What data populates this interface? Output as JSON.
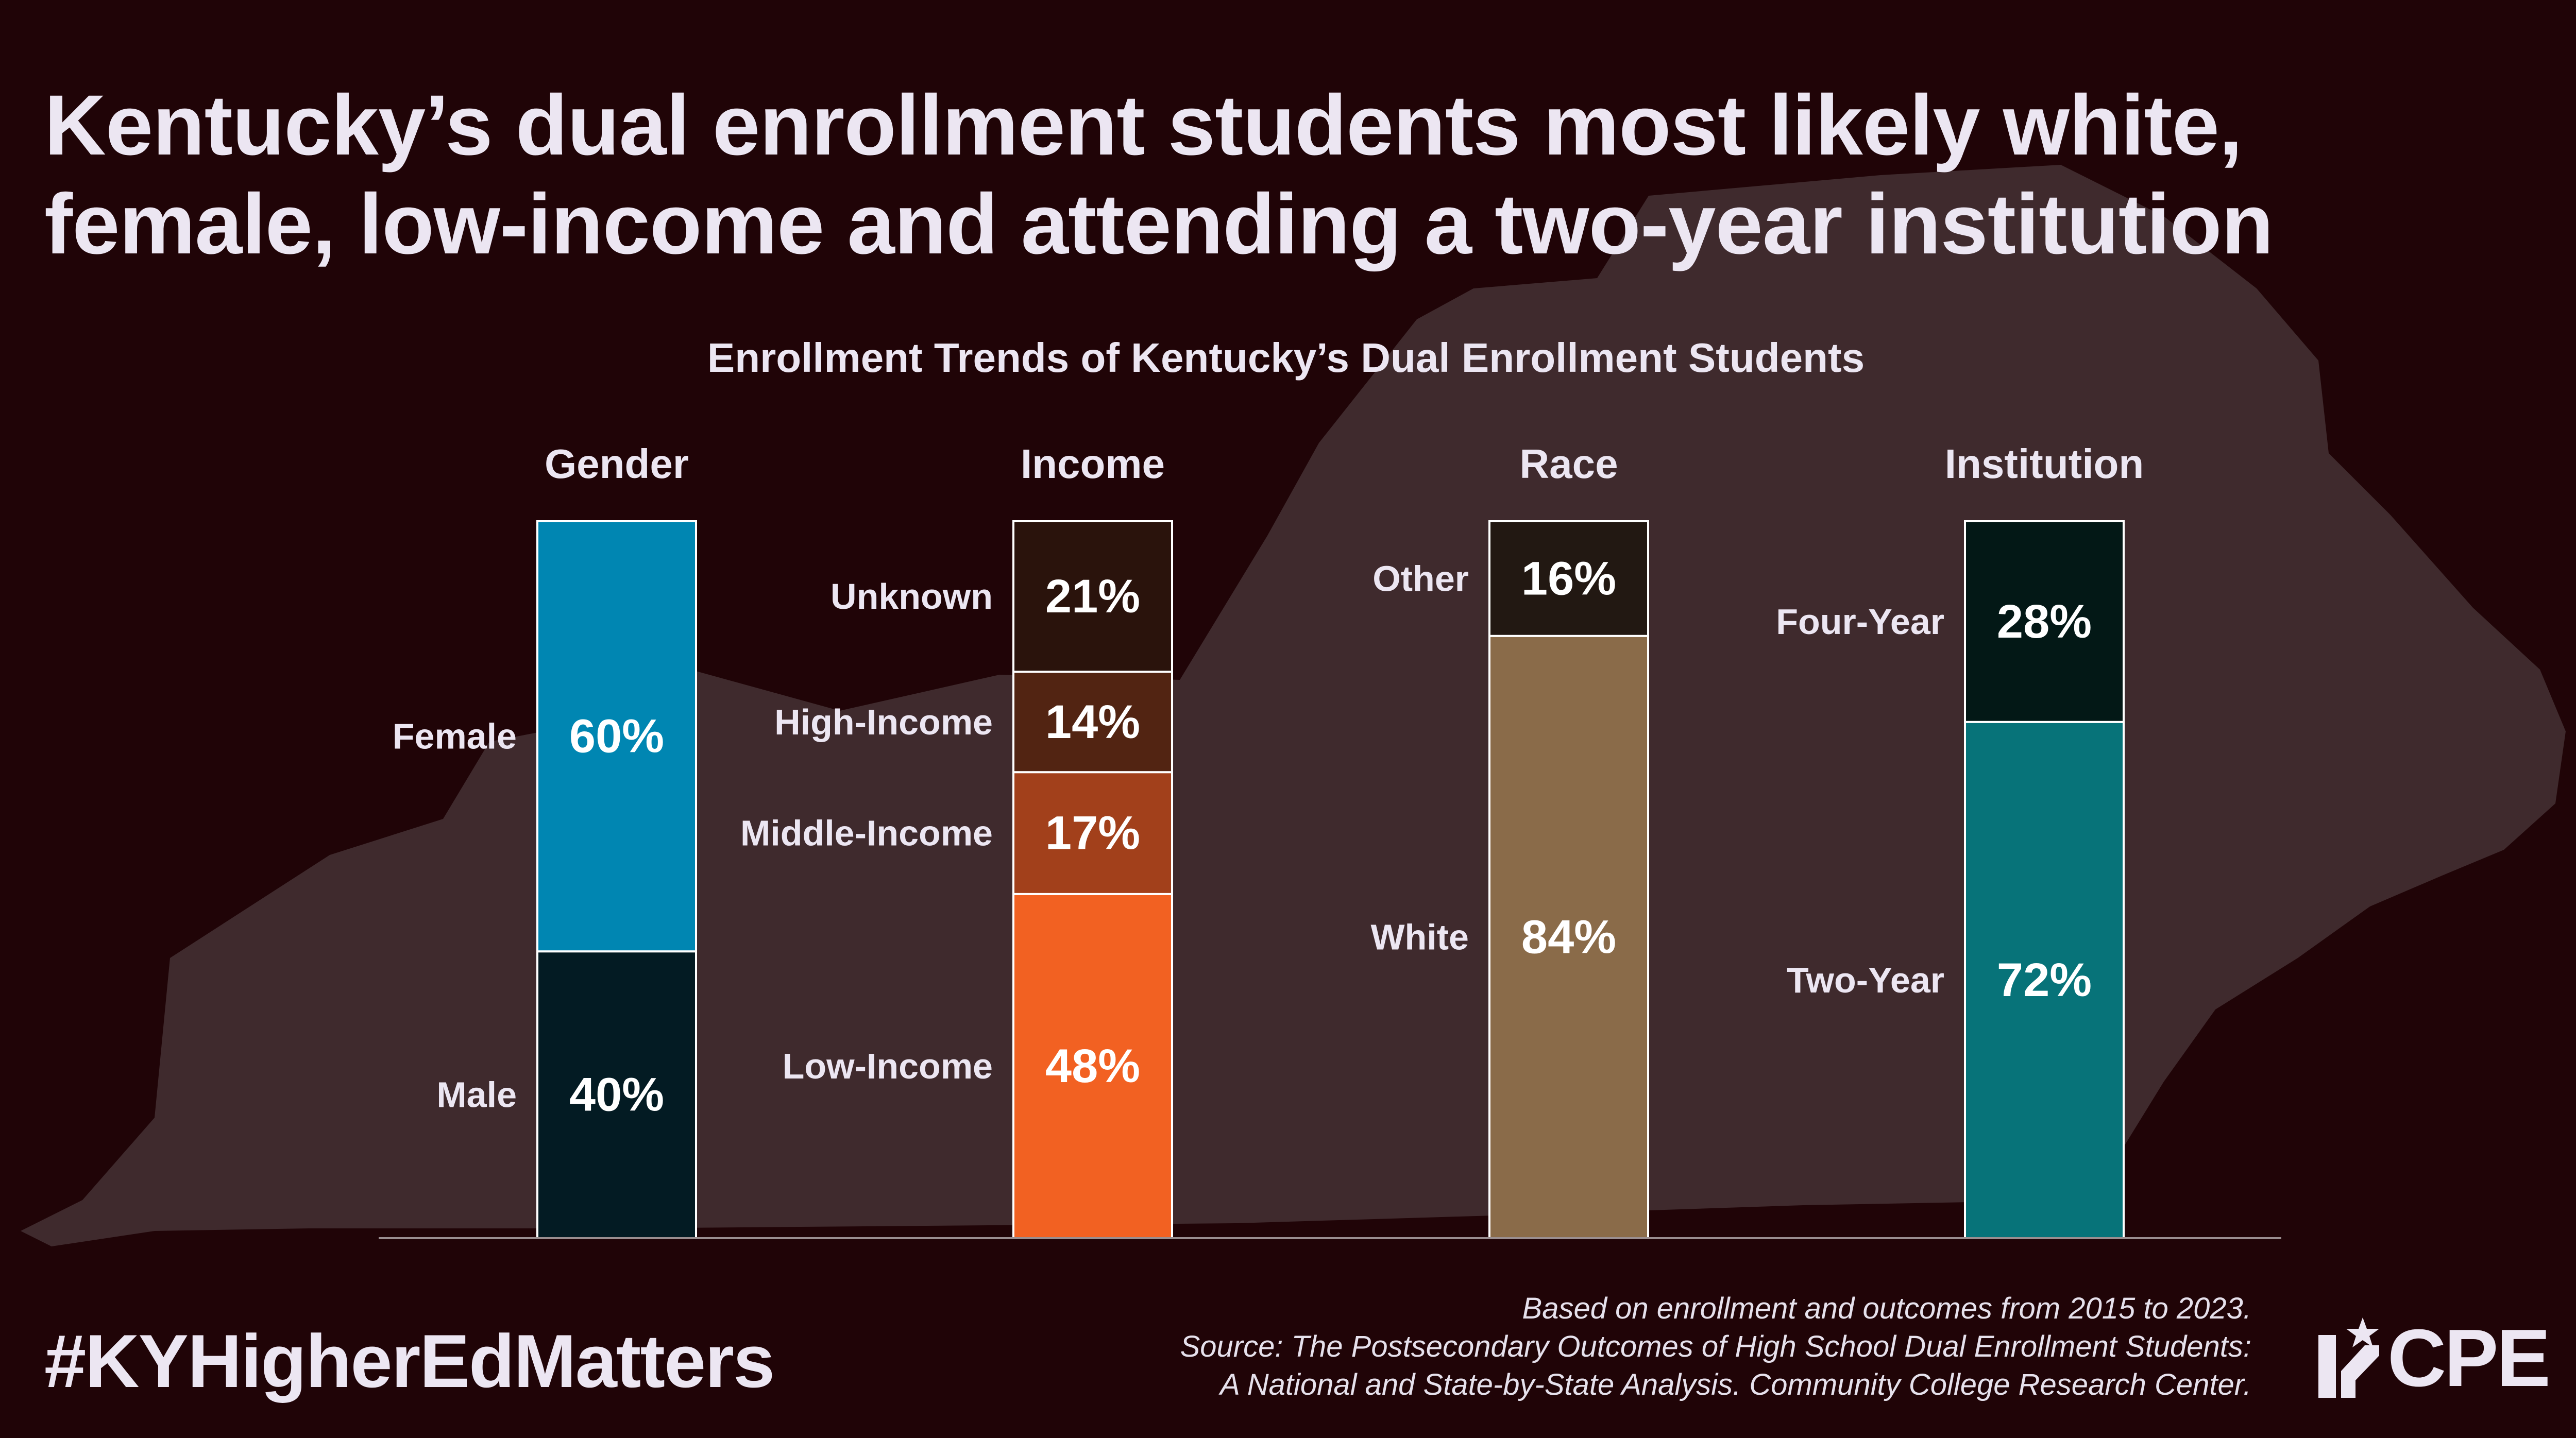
{
  "title": "Kentucky’s dual enrollment students most likely white, female, low-income and attending a two-year institution",
  "hashtag": "#KYHigherEdMatters",
  "footnote": {
    "line1": "Based on enrollment and outcomes from 2015 to 2023.",
    "line2": "Source: The Postsecondary Outcomes of High School Dual Enrollment Students:",
    "line3": "A National and State-by-State Analysis. Community College Research Center."
  },
  "logo": {
    "text": "CPE",
    "icon": "kentucky-star-icon"
  },
  "colors": {
    "background": "#200407",
    "map": "#3f2a2d",
    "text": "#ece6f2"
  },
  "chart_data": {
    "type": "bar",
    "stacked": true,
    "title": "Enrollment Trends of Kentucky’s Dual Enrollment Students",
    "ylim": [
      0,
      100
    ],
    "unit": "%",
    "groups": [
      {
        "name": "Gender",
        "segments": [
          {
            "label": "Male",
            "value": 40,
            "color": "#031b23",
            "display": "40%"
          },
          {
            "label": "Female",
            "value": 60,
            "color": "#0086b2",
            "display": "60%"
          }
        ]
      },
      {
        "name": "Income",
        "segments": [
          {
            "label": "Low-Income",
            "value": 48,
            "color": "#f26122",
            "display": "48%"
          },
          {
            "label": "Middle-Income",
            "value": 17,
            "color": "#a2401b",
            "display": "17%"
          },
          {
            "label": "High-Income",
            "value": 14,
            "color": "#522412",
            "display": "14%"
          },
          {
            "label": "Unknown",
            "value": 21,
            "color": "#2a130c",
            "display": "21%"
          }
        ]
      },
      {
        "name": "Race",
        "segments": [
          {
            "label": "White",
            "value": 84,
            "color": "#8a6b49",
            "display": "84%"
          },
          {
            "label": "Other",
            "value": 16,
            "color": "#221812",
            "display": "16%"
          }
        ]
      },
      {
        "name": "Institution",
        "segments": [
          {
            "label": "Two-Year",
            "value": 72,
            "color": "#077379",
            "display": "72%"
          },
          {
            "label": "Four-Year",
            "value": 28,
            "color": "#031816",
            "display": "28%"
          }
        ]
      }
    ]
  }
}
